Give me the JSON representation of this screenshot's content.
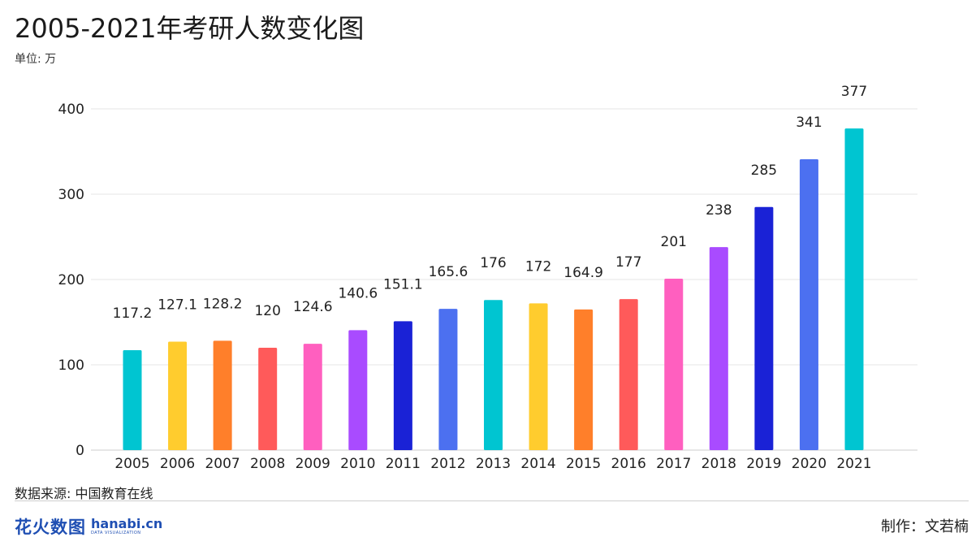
{
  "header": {
    "title": "2005-2021年考研人数变化图",
    "unit": "单位: 万"
  },
  "footer": {
    "source": "数据来源: 中国教育在线",
    "logo_cn": "花火数图",
    "logo_en": "hanabi.cn",
    "logo_sub": "DATA VISUALIZATION",
    "author": "制作：文若楠"
  },
  "chart_data": {
    "type": "bar",
    "title": "2005-2021年考研人数变化图",
    "xlabel": "",
    "ylabel": "单位: 万",
    "ylim": [
      0,
      400
    ],
    "yticks": [
      0,
      100,
      200,
      300,
      400
    ],
    "grid": true,
    "categories": [
      "2005",
      "2006",
      "2007",
      "2008",
      "2009",
      "2010",
      "2011",
      "2012",
      "2013",
      "2014",
      "2015",
      "2016",
      "2017",
      "2018",
      "2019",
      "2020",
      "2021"
    ],
    "values": [
      117.2,
      127.1,
      128.2,
      120,
      124.6,
      140.6,
      151.1,
      165.6,
      176,
      172,
      164.9,
      177,
      201,
      238,
      285,
      341,
      377
    ],
    "labels": [
      "117.2",
      "127.1",
      "128.2",
      "120",
      "124.6",
      "140.6",
      "151.1",
      "165.6",
      "176",
      "172",
      "164.9",
      "177",
      "201",
      "238",
      "285",
      "341",
      "377"
    ],
    "colors": [
      "#00C5D1",
      "#FFCC2E",
      "#FF7F2A",
      "#FF5A5A",
      "#FF5FBF",
      "#A94BFF",
      "#1A22D6",
      "#4C70F0",
      "#00C5D1",
      "#FFCC2E",
      "#FF7F2A",
      "#FF5A5A",
      "#FF5FBF",
      "#A94BFF",
      "#1A22D6",
      "#4C70F0",
      "#00C5D1"
    ]
  }
}
